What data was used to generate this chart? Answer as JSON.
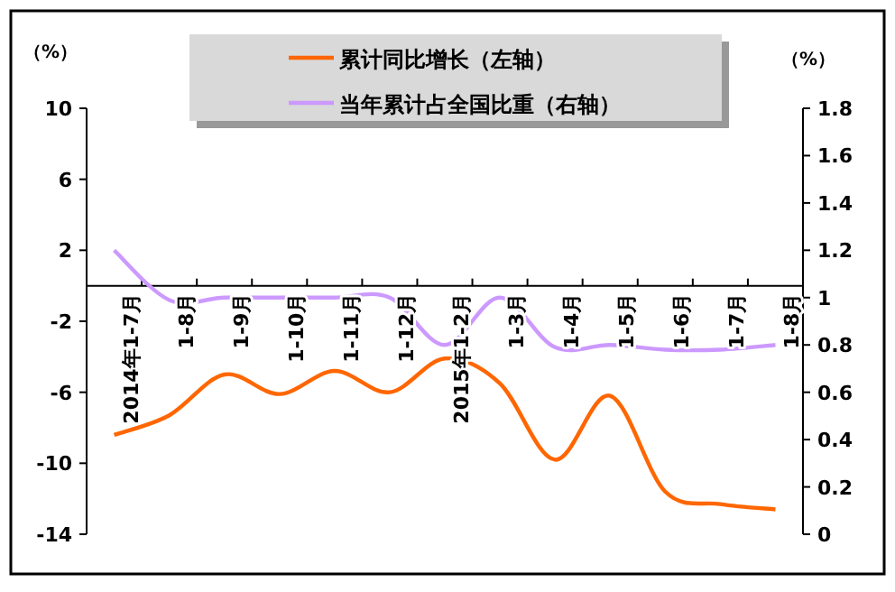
{
  "chart_data": {
    "type": "line",
    "ylabel": "（%）",
    "y2label": "（%）",
    "categories": [
      "2014年1-7月",
      "1-8月",
      "1-9月",
      "1-10月",
      "1-11月",
      "1-12月",
      "2015年1-2月",
      "1-3月",
      "1-4月",
      "1-5月",
      "1-6月",
      "1-7月",
      "1-8月"
    ],
    "series": [
      {
        "name": "累计同比增长（左轴）",
        "color": "#ff6600",
        "values": [
          -8.4,
          -7.3,
          -5.0,
          -6.1,
          -4.8,
          -6.0,
          -4.1,
          -5.5,
          -9.8,
          -6.2,
          -11.6,
          -12.3,
          -12.6
        ]
      },
      {
        "name": "当年累计占全国比重（右轴）",
        "color": "#cc99ff",
        "axis": "y2",
        "values": [
          1.2,
          0.99,
          1.0,
          1.0,
          1.0,
          1.0,
          0.8,
          1.0,
          0.79,
          0.8,
          0.78,
          0.78,
          0.8
        ]
      }
    ],
    "ylim": [
      -14,
      10
    ],
    "yticks": [
      10,
      6,
      2,
      -2,
      -6,
      -10,
      -14
    ],
    "y2lim": [
      0,
      1.8
    ],
    "y2ticks": [
      0,
      0.2,
      0.4,
      0.6,
      0.8,
      1,
      1.2,
      1.4,
      1.6,
      1.8
    ],
    "legend": "top",
    "marker": "none",
    "line_style": "solid",
    "grid": false
  }
}
